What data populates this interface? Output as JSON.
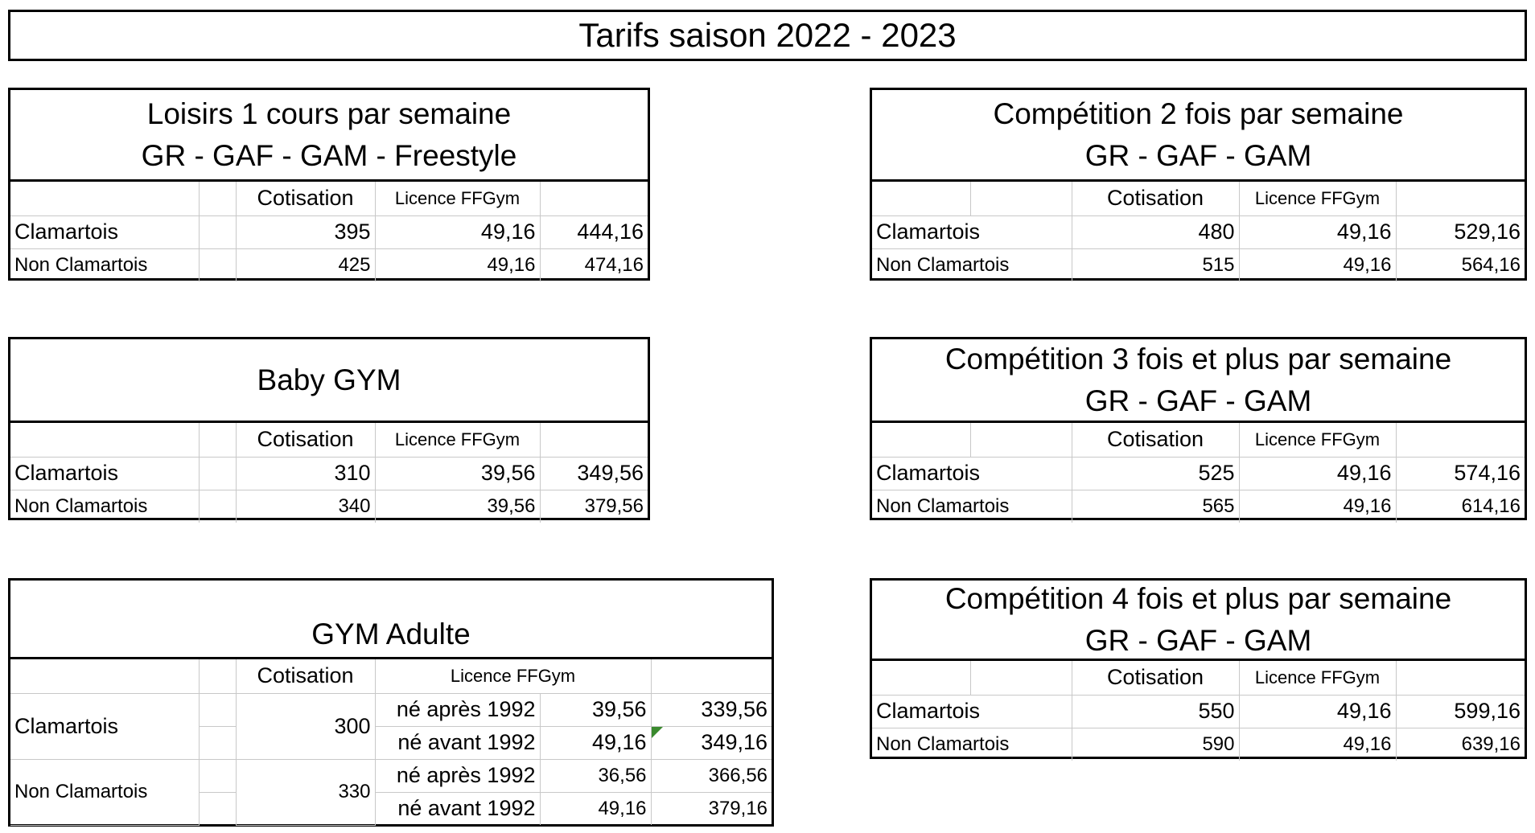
{
  "title": "Tarifs saison 2022 - 2023",
  "headers": {
    "cotisation": "Cotisation",
    "licence": "Licence FFGym"
  },
  "loisirs": {
    "title1": "Loisirs 1 cours par semaine",
    "title2": "GR - GAF - GAM - Freestyle",
    "rows": [
      {
        "label": "Clamartois",
        "cotisation": "395",
        "licence": "49,16",
        "total": "444,16"
      },
      {
        "label": "Non Clamartois",
        "cotisation": "425",
        "licence": "49,16",
        "total": "474,16"
      }
    ]
  },
  "comp2": {
    "title1": "Compétition 2 fois par semaine",
    "title2": "GR - GAF - GAM",
    "rows": [
      {
        "label": "Clamartois",
        "cotisation": "480",
        "licence": "49,16",
        "total": "529,16"
      },
      {
        "label": "Non Clamartois",
        "cotisation": "515",
        "licence": "49,16",
        "total": "564,16"
      }
    ]
  },
  "baby": {
    "title1": "Baby GYM",
    "rows": [
      {
        "label": "Clamartois",
        "cotisation": "310",
        "licence": "39,56",
        "total": "349,56"
      },
      {
        "label": "Non Clamartois",
        "cotisation": "340",
        "licence": "39,56",
        "total": "379,56"
      }
    ]
  },
  "comp3": {
    "title1": "Compétition 3 fois et plus par semaine",
    "title2": "GR - GAF - GAM",
    "rows": [
      {
        "label": "Clamartois",
        "cotisation": "525",
        "licence": "49,16",
        "total": "574,16"
      },
      {
        "label": "Non Clamartois",
        "cotisation": "565",
        "licence": "49,16",
        "total": "614,16"
      }
    ]
  },
  "adulte": {
    "title1": "GYM Adulte",
    "rows": [
      {
        "label": "Clamartois",
        "cotisation": "300",
        "sub": [
          {
            "label": "né après 1992",
            "licence": "39,56",
            "total": "339,56"
          },
          {
            "label": "né avant 1992",
            "licence": "49,16",
            "total": "349,16"
          }
        ]
      },
      {
        "label": "Non Clamartois",
        "cotisation": "330",
        "sub": [
          {
            "label": "né après 1992",
            "licence": "36,56",
            "total": "366,56"
          },
          {
            "label": "né avant 1992",
            "licence": "49,16",
            "total": "379,16"
          }
        ]
      }
    ]
  },
  "comp4": {
    "title1": "Compétition 4 fois et plus par semaine",
    "title2": "GR - GAF - GAM",
    "rows": [
      {
        "label": "Clamartois",
        "cotisation": "550",
        "licence": "49,16",
        "total": "599,16"
      },
      {
        "label": "Non Clamartois",
        "cotisation": "590",
        "licence": "49,16",
        "total": "639,16"
      }
    ]
  }
}
